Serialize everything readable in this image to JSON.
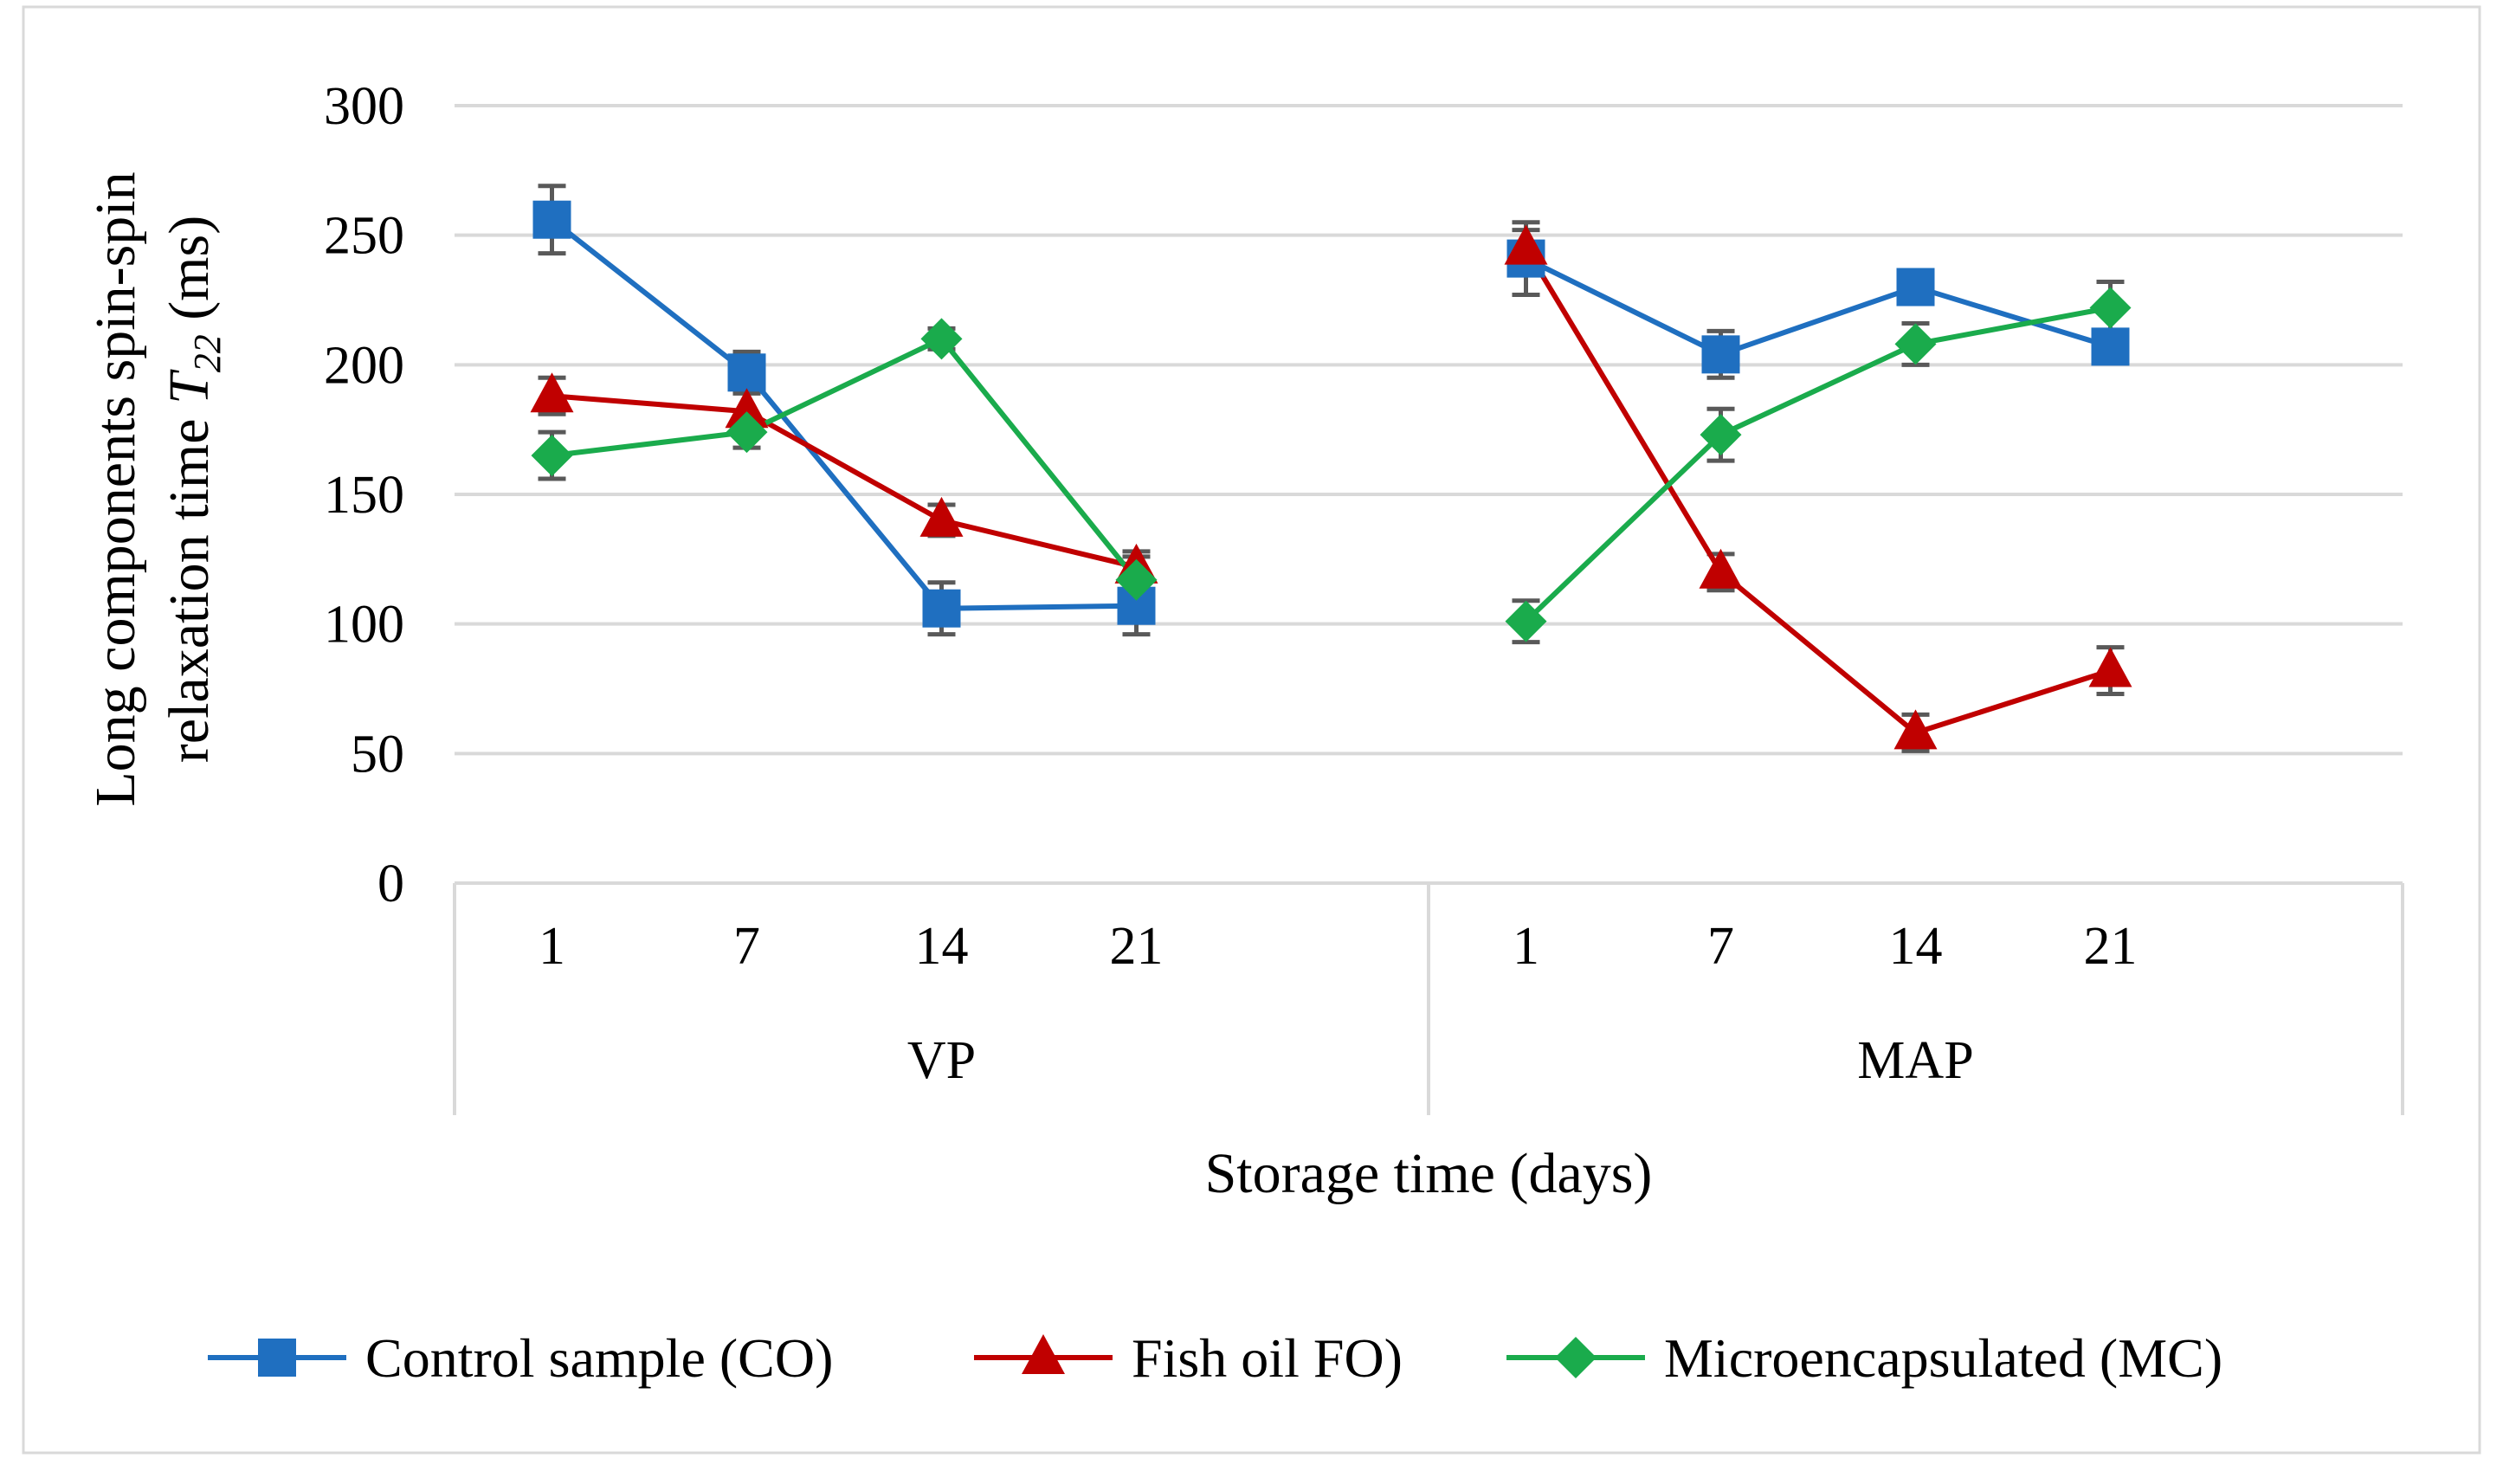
{
  "chart_data": {
    "type": "line",
    "title": "",
    "xlabel": "Storage time (days)",
    "ylabel_line1": "Long components spin-spin",
    "ylabel_line2_prefix": "relaxation time ",
    "ylabel_symbol": "T",
    "ylabel_subscript": "22",
    "ylabel_suffix": " (ms)",
    "ylim": [
      0,
      300
    ],
    "yticks": [
      0,
      50,
      100,
      150,
      200,
      250,
      300
    ],
    "grid": true,
    "legend_position": "bottom",
    "groups": [
      {
        "name": "VP",
        "categories": [
          "1",
          "7",
          "14",
          "21"
        ]
      },
      {
        "name": "MAP",
        "categories": [
          "1",
          "7",
          "14",
          "21"
        ]
      }
    ],
    "series": [
      {
        "name": "Control sample (CO)",
        "color": "#1f6fc0",
        "marker": "square",
        "values": [
          [
            256,
            197,
            106,
            107
          ],
          [
            241,
            204,
            230,
            207
          ]
        ],
        "errors": [
          [
            13,
            8,
            10,
            11
          ],
          [
            14,
            9,
            6,
            6
          ]
        ]
      },
      {
        "name": "Fish oil FO)",
        "color": "#c00000",
        "marker": "triangle",
        "values": [
          [
            188,
            182,
            140,
            122
          ],
          [
            245,
            120,
            58,
            82
          ]
        ],
        "errors": [
          [
            7,
            7,
            6,
            6
          ],
          [
            7,
            7,
            7,
            9
          ]
        ]
      },
      {
        "name": "Microencapsulated (MC)",
        "color": "#1aab4c",
        "marker": "diamond",
        "values": [
          [
            165,
            174,
            210,
            117
          ],
          [
            101,
            173,
            208,
            222
          ]
        ],
        "errors": [
          [
            9,
            6,
            4,
            9
          ],
          [
            8,
            10,
            8,
            10
          ]
        ]
      }
    ]
  }
}
